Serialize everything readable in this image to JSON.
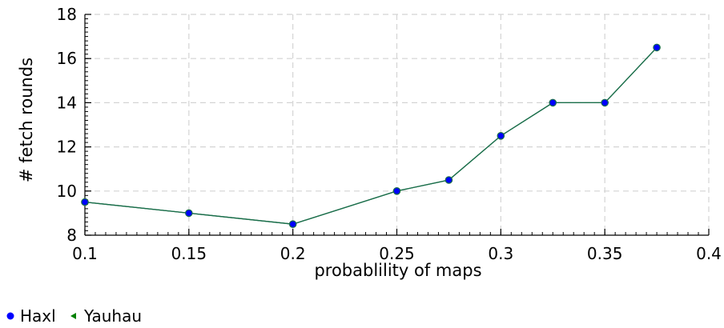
{
  "chart_data": {
    "type": "line",
    "xlabel": "probablility of maps",
    "ylabel": "# fetch rounds",
    "xlim": [
      0.1,
      0.4
    ],
    "ylim": [
      8,
      18
    ],
    "x_ticks": [
      "0.1",
      "0.15",
      "0.2",
      "0.25",
      "0.3",
      "0.35",
      "0.4"
    ],
    "y_ticks": [
      "8",
      "10",
      "12",
      "14",
      "16",
      "18"
    ],
    "grid": true,
    "legend_placement": "bottom-left",
    "x": [
      0.1,
      0.15,
      0.2,
      0.25,
      0.275,
      0.3,
      0.325,
      0.35,
      0.375
    ],
    "series": [
      {
        "name": "Haxl",
        "marker": "circle",
        "color": "#0000ff",
        "values": [
          9.5,
          9.0,
          8.5,
          10.0,
          10.5,
          12.5,
          14.0,
          14.0,
          16.5
        ]
      },
      {
        "name": "Yauhau",
        "marker": "triangle-left",
        "color": "#008000",
        "values": [
          9.5,
          9.0,
          8.5,
          10.0,
          10.5,
          12.5,
          14.0,
          14.0,
          16.5
        ]
      }
    ],
    "line_color": "#1a6e4a"
  }
}
